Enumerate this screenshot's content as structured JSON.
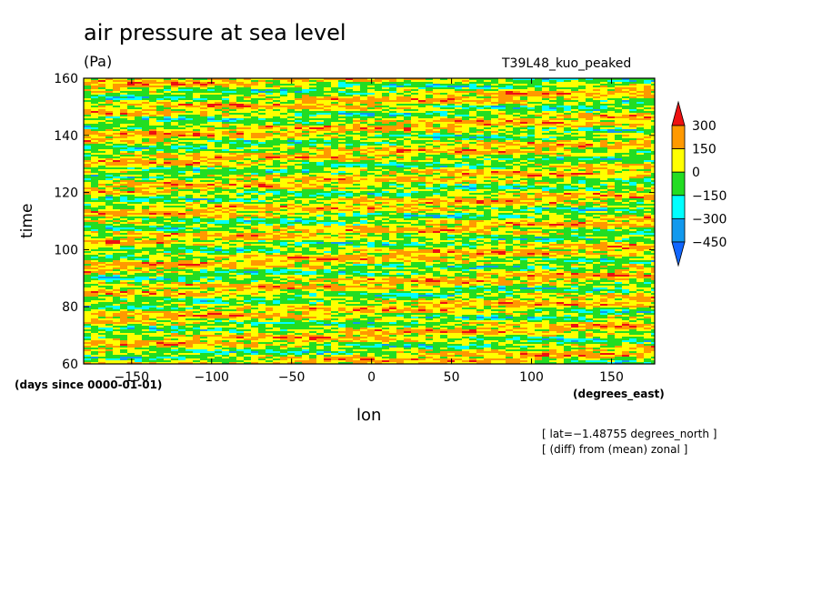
{
  "chart_data": {
    "type": "heatmap",
    "title": "air pressure at sea level",
    "units": "(Pa)",
    "run_label": "T39L48_kuo_peaked",
    "xlabel": "lon",
    "xunits": "(degrees_east)",
    "ylabel": "time",
    "yunits": "(days since 0000-01-01)",
    "xlim": [
      -180,
      177
    ],
    "ylim": [
      60,
      160
    ],
    "xticks": [
      -150,
      -100,
      -50,
      0,
      50,
      100,
      150
    ],
    "yticks": [
      60,
      80,
      100,
      120,
      140,
      160
    ],
    "legend": {
      "placement": "right",
      "labels": [
        "300",
        "150",
        "0",
        "−150",
        "−300",
        "−450"
      ],
      "levels": [
        300,
        150,
        0,
        -150,
        -300,
        -450
      ],
      "colors": [
        "#ee1111",
        "#ff9900",
        "#ffff00",
        "#22dd22",
        "#00ffff",
        "#1199ee",
        "#1166ff"
      ]
    },
    "notes": [
      "[ lat=−1.48755 degrees_north ]",
      "[ (diff) from (mean) zonal ]"
    ]
  }
}
